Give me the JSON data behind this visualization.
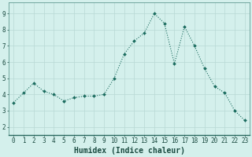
{
  "x": [
    0,
    1,
    2,
    3,
    4,
    5,
    6,
    7,
    8,
    9,
    10,
    11,
    12,
    13,
    14,
    15,
    16,
    17,
    18,
    19,
    20,
    21,
    22,
    23
  ],
  "y": [
    3.5,
    4.1,
    4.7,
    4.2,
    4.0,
    3.6,
    3.8,
    3.9,
    3.9,
    4.0,
    5.0,
    6.5,
    7.3,
    7.8,
    9.0,
    8.4,
    5.9,
    8.2,
    7.0,
    5.6,
    4.5,
    4.1,
    3.0,
    2.4
  ],
  "line_color": "#1a6b5e",
  "marker": "D",
  "marker_size": 2.0,
  "linewidth": 0.8,
  "bg_color": "#d4f0ec",
  "grid_color": "#b8d8d4",
  "xlabel": "Humidex (Indice chaleur)",
  "xlim": [
    -0.5,
    23.5
  ],
  "ylim": [
    1.5,
    9.7
  ],
  "yticks": [
    2,
    3,
    4,
    5,
    6,
    7,
    8,
    9
  ],
  "xticks": [
    0,
    1,
    2,
    3,
    4,
    5,
    6,
    7,
    8,
    9,
    10,
    11,
    12,
    13,
    14,
    15,
    16,
    17,
    18,
    19,
    20,
    21,
    22,
    23
  ],
  "tick_color": "#1a4a40",
  "xlabel_fontsize": 7.0,
  "tick_fontsize": 5.5,
  "spine_color": "#4a8a80",
  "bottom_spine_color": "#2a6a60"
}
